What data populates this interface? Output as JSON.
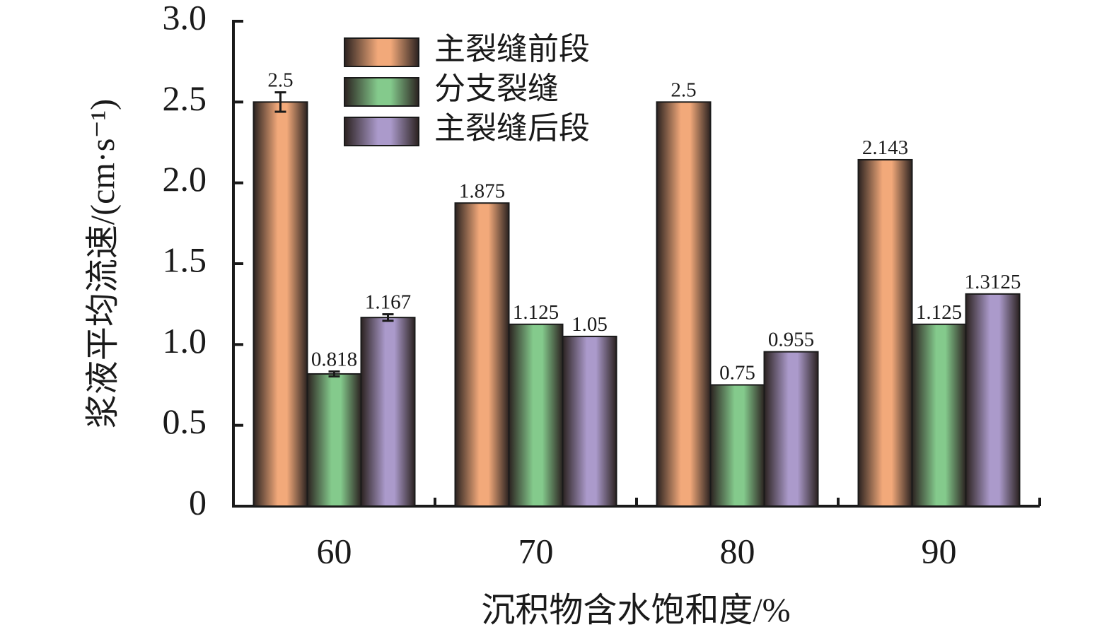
{
  "chart_data": {
    "type": "bar",
    "ylabel": "浆液平均流速/(cm·s⁻¹)",
    "xlabel": "沉积物含水饱和度/%",
    "categories": [
      "60",
      "70",
      "80",
      "90"
    ],
    "series": [
      {
        "name": "主裂缝前段",
        "color": "#f2a97a",
        "values": [
          2.5,
          1.875,
          2.5,
          2.143
        ],
        "errors": [
          0.06,
          null,
          null,
          null
        ]
      },
      {
        "name": "分支裂缝",
        "color": "#84ca8c",
        "values": [
          0.818,
          1.125,
          0.75,
          1.125
        ],
        "errors": [
          0.015,
          null,
          null,
          null
        ]
      },
      {
        "name": "主裂缝后段",
        "color": "#ab9acb",
        "values": [
          1.167,
          1.05,
          0.955,
          1.3125
        ],
        "errors": [
          0.02,
          null,
          null,
          null
        ]
      }
    ],
    "ylim": [
      0,
      3
    ],
    "yticks": [
      0,
      0.5,
      {
        "value": 1,
        "label": "1.0"
      },
      1.5,
      {
        "value": 2,
        "label": "2.0"
      },
      2.5,
      {
        "value": 3,
        "label": "3.0"
      }
    ],
    "grid": false
  }
}
